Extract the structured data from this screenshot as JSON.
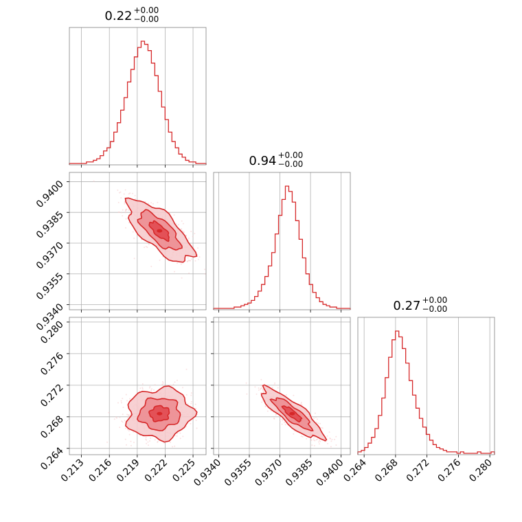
{
  "chart_data": {
    "type": "corner",
    "colors": {
      "main": "#d62728",
      "light": "#f6c9cb",
      "mid": "#ec8a8e",
      "dark": "#e0454b",
      "grid": "#b0b0b0",
      "frame": "#808080"
    },
    "grid": true,
    "parameters": [
      {
        "title_value": "0.22",
        "title_plus": "+0.00",
        "title_minus": "−0.00",
        "ticks": [
          0.213,
          0.216,
          0.219,
          0.222,
          0.225
        ],
        "tick_labels": [
          "0.213",
          "0.216",
          "0.219",
          "0.222",
          "0.225"
        ],
        "range": [
          0.2117,
          0.2264
        ],
        "mean": 0.2214,
        "std": 0.00175
      },
      {
        "title_value": "0.94",
        "title_plus": "+0.00",
        "title_minus": "−0.00",
        "ticks": [
          0.934,
          0.9355,
          0.937,
          0.9385,
          0.94
        ],
        "tick_labels": [
          "0.9340",
          "0.9355",
          "0.9370",
          "0.9385",
          "0.9400"
        ],
        "range": [
          0.93375,
          0.94045
        ],
        "mean": 0.9376,
        "std": 0.00075
      },
      {
        "title_value": "0.27",
        "title_plus": "+0.00",
        "title_minus": "−0.00",
        "ticks": [
          0.264,
          0.268,
          0.272,
          0.276,
          0.28
        ],
        "tick_labels": [
          "0.264",
          "0.268",
          "0.272",
          "0.276",
          "0.280"
        ],
        "range": [
          0.2632,
          0.2806
        ],
        "mean": 0.2684,
        "std": 0.0016
      }
    ],
    "histograms": [
      [
        0,
        0,
        0,
        0,
        0,
        1,
        1,
        2,
        3,
        5,
        8,
        10,
        14,
        20,
        26,
        34,
        42,
        52,
        60,
        68,
        74,
        78,
        76,
        72,
        64,
        56,
        46,
        36,
        28,
        20,
        14,
        10,
        6,
        4,
        2,
        1,
        1,
        0,
        0,
        0
      ],
      [
        0,
        0,
        0,
        0,
        0,
        0,
        1,
        1,
        2,
        3,
        4,
        6,
        9,
        13,
        18,
        24,
        32,
        42,
        56,
        70,
        82,
        92,
        88,
        80,
        66,
        52,
        38,
        26,
        18,
        12,
        8,
        5,
        3,
        2,
        1,
        1,
        0,
        0,
        0,
        0
      ],
      [
        1,
        2,
        4,
        7,
        11,
        17,
        26,
        38,
        52,
        66,
        78,
        84,
        80,
        72,
        62,
        50,
        40,
        31,
        24,
        18,
        13,
        9,
        6,
        4,
        3,
        2,
        1,
        1,
        1,
        0,
        1,
        0,
        0,
        0,
        0,
        1,
        0,
        0,
        0,
        1
      ]
    ],
    "correlations": {
      "1-0": -0.72,
      "2-0": 0.05,
      "2-1": -0.85
    }
  }
}
